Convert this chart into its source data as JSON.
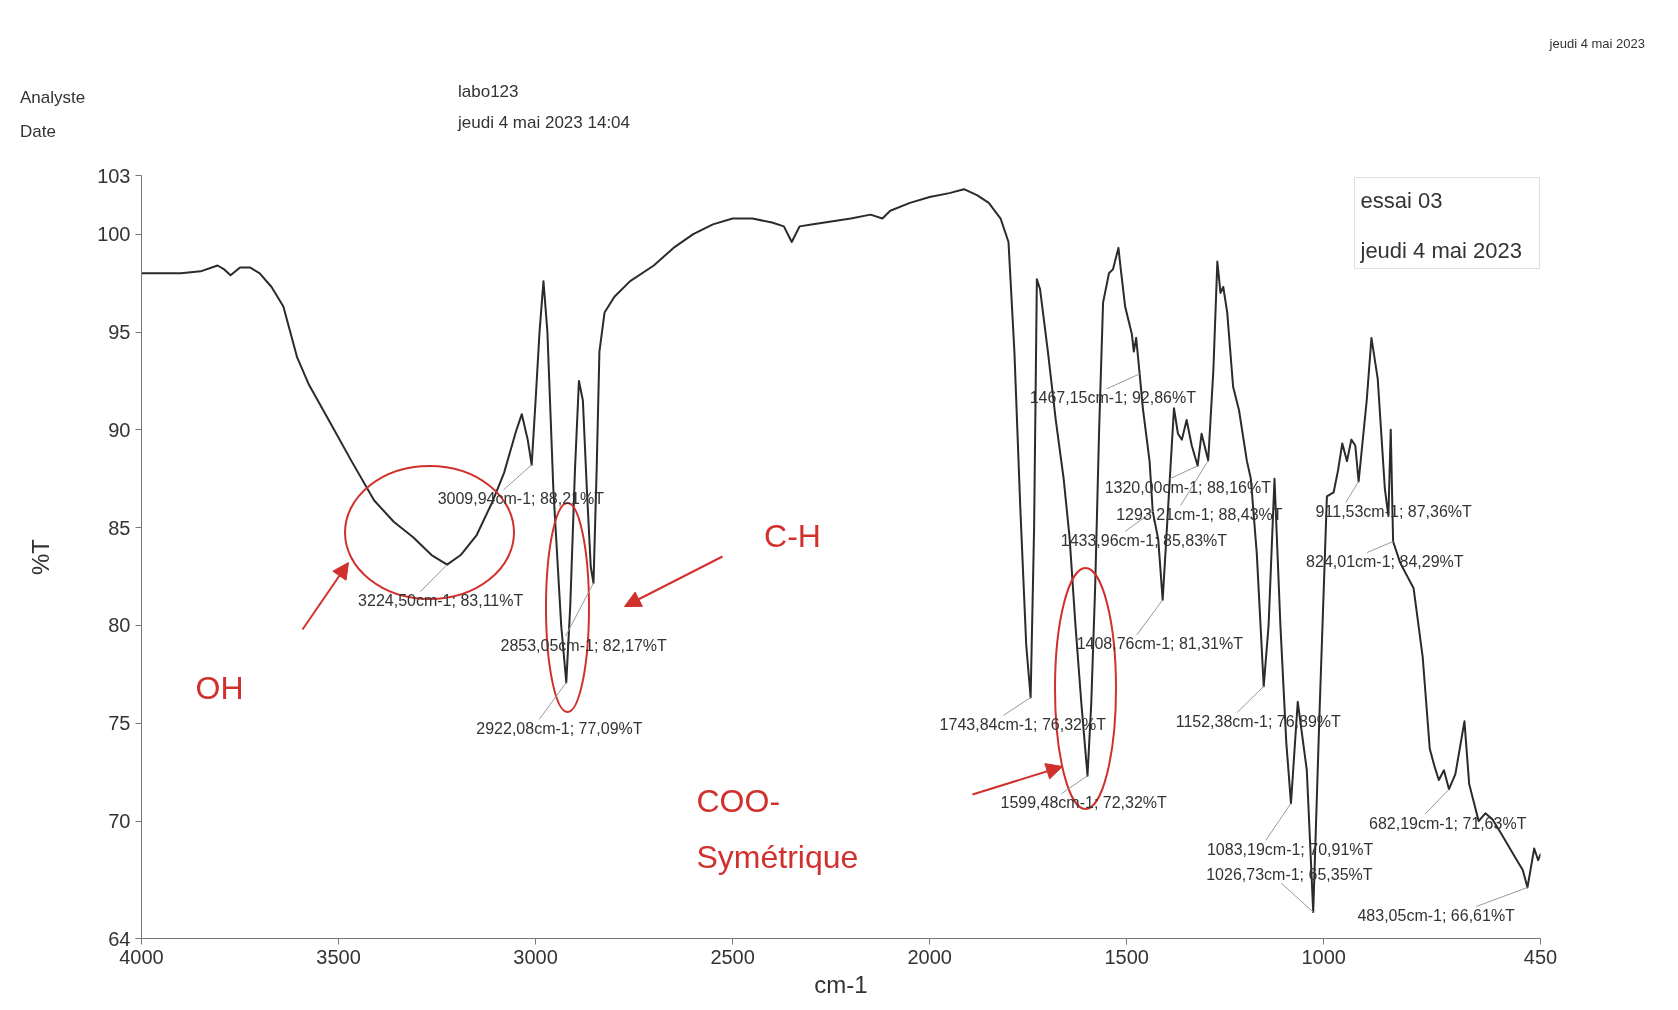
{
  "chart_data": {
    "type": "line",
    "xlabel": "cm-1",
    "ylabel": "%T",
    "xlim": [
      4000,
      450
    ],
    "ylim": [
      64,
      103
    ],
    "xticks": [
      4000,
      3500,
      3000,
      2500,
      2000,
      1500,
      1000,
      450
    ],
    "yticks": [
      64,
      70,
      75,
      80,
      85,
      90,
      95,
      100,
      103
    ],
    "color": "#2b2b2b",
    "x": [
      4000,
      3950,
      3900,
      3850,
      3807,
      3790,
      3774,
      3750,
      3725,
      3700,
      3670,
      3640,
      3605,
      3575,
      3525,
      3467,
      3410,
      3360,
      3310,
      3264,
      3224.5,
      3190,
      3150,
      3110,
      3080,
      3050,
      3035,
      3020,
      3009.94,
      3000,
      2990,
      2980,
      2970,
      2955,
      2935,
      2922.08,
      2912,
      2900,
      2890,
      2880,
      2870,
      2860,
      2853.05,
      2845,
      2838,
      2825,
      2800,
      2760,
      2700,
      2650,
      2600,
      2550,
      2500,
      2450,
      2400,
      2370,
      2350,
      2330,
      2300,
      2200,
      2150,
      2120,
      2100,
      2050,
      2000,
      1950,
      1913,
      1880,
      1850,
      1820,
      1800,
      1785,
      1770,
      1755,
      1743.84,
      1735,
      1728,
      1720,
      1700,
      1680,
      1660,
      1645,
      1630,
      1615,
      1599.48,
      1590,
      1580,
      1570,
      1560,
      1545,
      1535,
      1521,
      1515,
      1504,
      1487,
      1482,
      1476,
      1467.15,
      1459,
      1442,
      1433.96,
      1420,
      1408.76,
      1395,
      1388,
      1380,
      1370,
      1360,
      1348,
      1335,
      1320,
      1310,
      1293.21,
      1280,
      1270,
      1262,
      1255,
      1245,
      1230,
      1215,
      1195,
      1185,
      1170,
      1152.38,
      1140,
      1125,
      1110,
      1095,
      1083.19,
      1066,
      1043,
      1026.73,
      1010,
      1002,
      992,
      975,
      964,
      953,
      941,
      930,
      920,
      911.53,
      891,
      879,
      863,
      845,
      836,
      830,
      824.01,
      806,
      772,
      749,
      731,
      719,
      708,
      695,
      682.19,
      666,
      643,
      631,
      607,
      590,
      572,
      548,
      513,
      495,
      483.05,
      466,
      456,
      450
    ],
    "values": [
      98.0,
      98.0,
      98.0,
      98.1,
      98.4,
      98.2,
      97.9,
      98.3,
      98.3,
      98.0,
      97.3,
      96.3,
      93.7,
      92.3,
      90.5,
      88.4,
      86.4,
      85.3,
      84.5,
      83.6,
      83.11,
      83.6,
      84.6,
      86.3,
      87.8,
      89.9,
      90.8,
      89.5,
      88.21,
      91.5,
      95.0,
      97.6,
      95.0,
      87.0,
      80.0,
      77.09,
      81.0,
      88.0,
      92.5,
      91.5,
      87.0,
      83.0,
      82.17,
      88.0,
      94.0,
      96.0,
      96.8,
      97.6,
      98.4,
      99.3,
      100.0,
      100.5,
      100.8,
      100.8,
      100.6,
      100.4,
      99.6,
      100.4,
      100.5,
      100.8,
      101.0,
      100.8,
      101.2,
      101.6,
      101.9,
      102.1,
      102.3,
      102.0,
      101.6,
      100.8,
      99.6,
      94.0,
      86.0,
      79.0,
      76.32,
      85.0,
      97.7,
      97.2,
      94.0,
      90.5,
      87.5,
      84.5,
      80.0,
      76.0,
      72.32,
      76.0,
      82.0,
      90.0,
      96.5,
      98.0,
      98.2,
      99.3,
      98.2,
      96.3,
      94.9,
      94.0,
      94.7,
      92.86,
      91.1,
      88.4,
      85.83,
      84.4,
      81.31,
      86.0,
      88.4,
      91.1,
      89.8,
      89.5,
      90.5,
      89.2,
      88.16,
      89.8,
      88.43,
      93.1,
      98.6,
      97.0,
      97.3,
      96.0,
      92.2,
      91.0,
      88.4,
      87.5,
      83.7,
      76.89,
      80.0,
      87.5,
      80.0,
      74.0,
      70.91,
      76.1,
      72.6,
      65.35,
      76.0,
      80.7,
      86.6,
      86.8,
      87.9,
      89.3,
      88.4,
      89.5,
      89.2,
      87.36,
      91.5,
      94.7,
      92.6,
      87.0,
      85.6,
      90.0,
      84.29,
      83.2,
      81.9,
      78.4,
      73.7,
      72.8,
      72.1,
      72.6,
      71.63,
      72.4,
      75.1,
      71.9,
      70.0,
      70.4,
      70.1,
      69.3,
      68.1,
      67.5,
      66.61,
      68.6,
      68.0,
      68.3
    ],
    "annotations": [
      "Analyste",
      "Date",
      "labo123",
      "jeudi 4 mai 2023 14:04",
      "jeudi 4 mai 2023",
      "essai 03",
      "jeudi 4 mai 2023",
      "OH",
      "C-H",
      "COO-\nSymétrique",
      {
        "text": "3224,50cm-1; 83,11%T",
        "x": 3224.5,
        "y": 83.11
      },
      {
        "text": "3009,94cm-1; 88,21%T",
        "x": 3009.94,
        "y": 88.21
      },
      {
        "text": "2853,05cm-1; 82,17%T",
        "x": 2853.05,
        "y": 82.17
      },
      {
        "text": "2922,08cm-1; 77,09%T",
        "x": 2922.08,
        "y": 77.09
      },
      {
        "text": "1467,15cm-1; 92,86%T",
        "x": 1467.15,
        "y": 92.86
      },
      {
        "text": "1320,00cm-1; 88,16%T",
        "x": 1320.0,
        "y": 88.16
      },
      {
        "text": "1293,21cm-1; 88,43%T",
        "x": 1293.21,
        "y": 88.43
      },
      {
        "text": "911,53cm-1; 87,36%T",
        "x": 911.53,
        "y": 87.36
      },
      {
        "text": "1433,96cm-1; 85,83%T",
        "x": 1433.96,
        "y": 85.83
      },
      {
        "text": "824,01cm-1; 84,29%T",
        "x": 824.01,
        "y": 84.29
      },
      {
        "text": "1408,76cm-1; 81,31%T",
        "x": 1408.76,
        "y": 81.31
      },
      {
        "text": "1743,84cm-1; 76,32%T",
        "x": 1743.84,
        "y": 76.32
      },
      {
        "text": "1152,38cm-1; 76,89%T",
        "x": 1152.38,
        "y": 76.89
      },
      {
        "text": "1599,48cm-1; 72,32%T",
        "x": 1599.48,
        "y": 72.32
      },
      {
        "text": "682,19cm-1; 71,63%T",
        "x": 682.19,
        "y": 71.63
      },
      {
        "text": "1083,19cm-1; 70,91%T",
        "x": 1083.19,
        "y": 70.91
      },
      {
        "text": "483,05cm-1; 66,61%T",
        "x": 483.05,
        "y": 66.61
      },
      {
        "text": "1026,73cm-1; 65,35%T",
        "x": 1026.73,
        "y": 65.35
      }
    ]
  }
}
